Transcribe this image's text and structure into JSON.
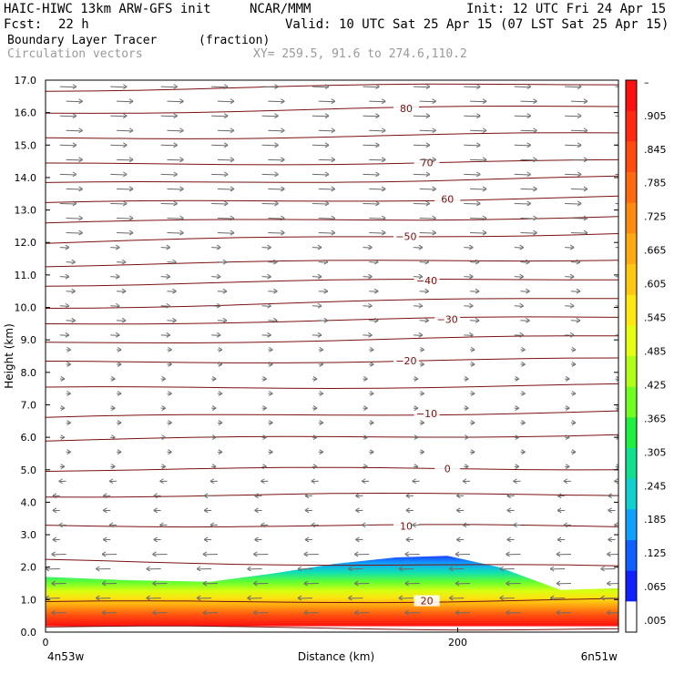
{
  "header": {
    "model": "HAIC-HIWC 13km ARW-GFS init",
    "org": "NCAR/MMM",
    "init": "Init: 12 UTC Fri 24 Apr 15",
    "fcst_label": "Fcst:",
    "fcst_value": "22 h",
    "valid": "Valid: 10 UTC Sat 25 Apr 15 (07 LST Sat 25 Apr 15)",
    "field": "Boundary Layer Tracer",
    "field_units": "(fraction)",
    "vectors": "Circulation vectors",
    "xy": "XY= 259.5, 91.6 to 274.6,110.2"
  },
  "chart_data": {
    "type": "heatmap",
    "xlabel": "Distance (km)",
    "ylabel": "Height (km)",
    "xlim": [
      0,
      278
    ],
    "ylim": [
      0,
      17
    ],
    "x_ticks": [
      {
        "v": 0,
        "label": "0"
      },
      {
        "v": 200,
        "label": "200"
      }
    ],
    "y_ticks": [
      0,
      1,
      2,
      3,
      4,
      5,
      6,
      7,
      8,
      9,
      10,
      11,
      12,
      13,
      14,
      15,
      16,
      17
    ],
    "y_tick_labels": [
      "0.0",
      "1.0",
      "2.0",
      "3.0",
      "4.0",
      "5.0",
      "6.0",
      "7.0",
      "8.0",
      "9.0",
      "10.0",
      "11.0",
      "12.0",
      "13.0",
      "14.0",
      "15.0",
      "16.0",
      "17.0"
    ],
    "x_endpoints": {
      "left": "4n53w",
      "right": "6n51w"
    },
    "colorbar": {
      "labels": [
        "–",
        ".905",
        ".845",
        ".785",
        ".725",
        ".665",
        ".605",
        ".545",
        ".485",
        ".425",
        ".365",
        ".305",
        ".245",
        ".185",
        ".125",
        ".065",
        ".005"
      ],
      "colors": [
        "#ff1010",
        "#ff2a10",
        "#ff4a10",
        "#ff6a10",
        "#ff8a10",
        "#ffaa10",
        "#ffc810",
        "#ffe810",
        "#e4ff10",
        "#b0ff18",
        "#70ff20",
        "#20f040",
        "#10e090",
        "#10d0d0",
        "#10a0ff",
        "#1060ff",
        "#1020ff",
        "#ffffff"
      ]
    },
    "tracer_top_km": [
      {
        "x": 0,
        "top": 1.7
      },
      {
        "x": 40,
        "top": 1.6
      },
      {
        "x": 80,
        "top": 1.55
      },
      {
        "x": 110,
        "top": 1.8
      },
      {
        "x": 140,
        "top": 2.1
      },
      {
        "x": 170,
        "top": 2.3
      },
      {
        "x": 195,
        "top": 2.35
      },
      {
        "x": 220,
        "top": 2.0
      },
      {
        "x": 235,
        "top": 1.65
      },
      {
        "x": 250,
        "top": 1.3
      },
      {
        "x": 278,
        "top": 1.35
      }
    ],
    "isotherms_C": [
      {
        "value": 80,
        "label": "80",
        "heights_km": [
          16.0,
          16.2
        ]
      },
      {
        "value": 70,
        "label": "70",
        "heights_km": [
          14.4,
          14.5
        ]
      },
      {
        "value": 60,
        "label": "60",
        "heights_km": [
          13.2,
          13.4
        ]
      },
      {
        "value": -50,
        "label": "−50",
        "heights_km": [
          12.0,
          12.3
        ]
      },
      {
        "value": -40,
        "label": "−40",
        "heights_km": [
          10.7,
          10.9
        ]
      },
      {
        "value": -30,
        "label": "−30",
        "heights_km": [
          9.5,
          9.7
        ]
      },
      {
        "value": -20,
        "label": "−20",
        "heights_km": [
          8.3,
          8.4
        ]
      },
      {
        "value": -10,
        "label": "−10",
        "heights_km": [
          6.6,
          6.8
        ]
      },
      {
        "value": 0,
        "label": "0",
        "heights_km": [
          5.0,
          5.05
        ]
      },
      {
        "value": 10,
        "label": "10",
        "heights_km": [
          3.3,
          3.25
        ]
      },
      {
        "value": 20,
        "label": "20",
        "heights_km": [
          0.9,
          1.0
        ]
      }
    ],
    "other_contours_km": [
      [
        16.7,
        16.9
      ],
      [
        15.2,
        15.35
      ],
      [
        13.8,
        14.0
      ],
      [
        12.6,
        12.8
      ],
      [
        11.3,
        11.5
      ],
      [
        10.0,
        10.3
      ],
      [
        8.9,
        9.1
      ],
      [
        7.5,
        7.6
      ],
      [
        5.9,
        6.1
      ],
      [
        4.2,
        4.25
      ],
      [
        2.2,
        2.0
      ],
      [
        0.15,
        0.1
      ]
    ],
    "wind_vectors": {
      "upper": "eastward",
      "lower": "westward",
      "color": "#6a6a6a"
    }
  },
  "colors": {
    "contour": "#7a1010",
    "axis": "#000000",
    "vector": "#6a6a6a"
  }
}
